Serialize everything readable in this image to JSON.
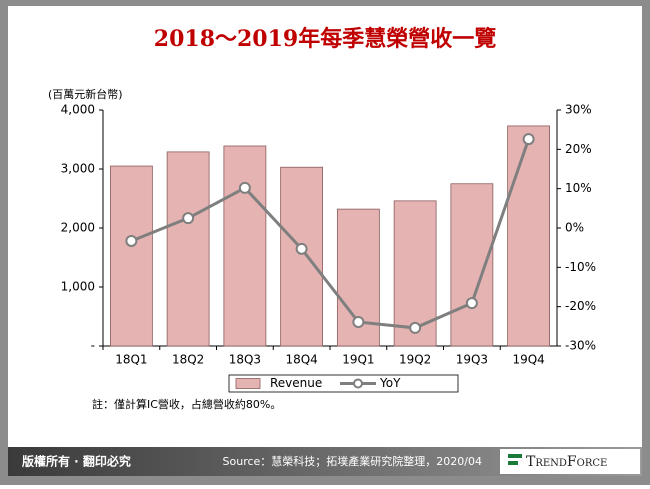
{
  "chart_data": {
    "type": "bar",
    "title": "2018～2019年每季慧榮營收一覽",
    "y_label": "(百萬元新台幣)",
    "categories": [
      "18Q1",
      "18Q2",
      "18Q3",
      "18Q4",
      "19Q1",
      "19Q2",
      "19Q3",
      "19Q4"
    ],
    "series": [
      {
        "name": "Revenue",
        "type": "bar",
        "color": "#e6b3b3",
        "values": [
          3050,
          3290,
          3390,
          3030,
          2320,
          2460,
          2750,
          3730
        ]
      },
      {
        "name": "YoY",
        "type": "line",
        "axis": "y2",
        "color": "#7f7f7f",
        "values": [
          -3.3,
          2.5,
          10.2,
          -5.3,
          -23.9,
          -25.4,
          -19.1,
          22.6
        ]
      }
    ],
    "ylim": [
      0,
      4000
    ],
    "yticks": [
      {
        "value": 0,
        "label": "-"
      },
      {
        "value": 1000,
        "label": "1,000"
      },
      {
        "value": 2000,
        "label": "2,000"
      },
      {
        "value": 3000,
        "label": "3,000"
      },
      {
        "value": 4000,
        "label": "4,000"
      }
    ],
    "y2lim": [
      -30,
      30
    ],
    "y2ticks": [
      {
        "value": -30,
        "label": "-30%"
      },
      {
        "value": -20,
        "label": "-20%"
      },
      {
        "value": -10,
        "label": "-10%"
      },
      {
        "value": 0,
        "label": "0%"
      },
      {
        "value": 10,
        "label": "10%"
      },
      {
        "value": 20,
        "label": "20%"
      },
      {
        "value": 30,
        "label": "30%"
      }
    ],
    "note": "註：僅計算IC營收，占總營收約80%。"
  },
  "footer": {
    "copyright": "版權所有 · 翻印必究",
    "source": "Source：慧榮科技；拓墣產業研究院整理，2020/04",
    "logo": "TrendForce"
  }
}
